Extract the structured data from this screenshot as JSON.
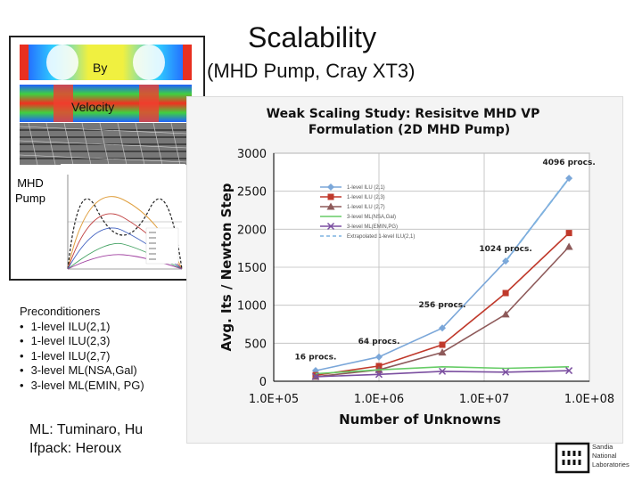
{
  "slide": {
    "title": "Scalability",
    "subtitle": "(MHD Pump, Cray XT3)"
  },
  "left_panel": {
    "by_label": "By",
    "velocity_label": "Velocity",
    "mhd_label": "MHD Pump"
  },
  "preconditioners": {
    "heading": "Preconditioners",
    "items": [
      "1-level ILU(2,1)",
      "1-level ILU(2,3)",
      "1-level ILU(2,7)",
      "3-level ML(NSA,Gal)",
      "3-level ML(EMIN, PG)"
    ]
  },
  "credits": {
    "line1": "ML: Tuminaro, Hu",
    "line2": "Ifpack: Heroux"
  },
  "logo": {
    "line1": "Sandia",
    "line2": "National",
    "line3": "Laboratories"
  },
  "chart_data": {
    "type": "line",
    "title_line1": "Weak Scaling Study: Resisitve MHD VP",
    "title_line2": "Formulation (2D MHD Pump)",
    "xlabel": "Number of Unknowns",
    "ylabel": "Avg. Its / Newton Step",
    "x_scale": "log",
    "xlim": [
      100000,
      100000000
    ],
    "ylim": [
      0,
      3000
    ],
    "x_ticks": [
      "1.0E+05",
      "1.0E+06",
      "1.0E+07",
      "1.0E+08"
    ],
    "y_ticks": [
      0,
      500,
      1000,
      1500,
      2000,
      2500,
      3000
    ],
    "grid": true,
    "legend_position": "upper-left",
    "x": [
      250000,
      1000000,
      4000000,
      16000000,
      64000000
    ],
    "series": [
      {
        "name": "1-level ILU (2,1)",
        "color": "#7ba7d9",
        "marker": "diamond",
        "dash": "solid",
        "values": [
          140,
          320,
          700,
          1580,
          2670
        ]
      },
      {
        "name": "1-level ILU (2,3)",
        "color": "#c0392b",
        "marker": "square",
        "dash": "solid",
        "values": [
          80,
          200,
          480,
          1160,
          1950
        ]
      },
      {
        "name": "1-level ILU (2,7)",
        "color": "#8e5a5a",
        "marker": "triangle",
        "dash": "solid",
        "values": [
          60,
          150,
          380,
          880,
          1770
        ]
      },
      {
        "name": "3-level ML(NSA,Gal)",
        "color": "#66cc66",
        "marker": "none",
        "dash": "solid",
        "values": [
          100,
          150,
          190,
          170,
          190
        ]
      },
      {
        "name": "3-level ML(EMIN,PG)",
        "color": "#7b4fa0",
        "marker": "x",
        "dash": "solid",
        "values": [
          60,
          90,
          130,
          120,
          140
        ]
      },
      {
        "name": "Extrapolated 1-level ILU(2,1)",
        "color": "#7fb3e0",
        "marker": "none",
        "dash": "dashed",
        "values": [
          null,
          null,
          null,
          1580,
          2670
        ]
      }
    ],
    "annotations": [
      {
        "text": "16 procs.",
        "x": 250000,
        "y": 290
      },
      {
        "text": "64 procs.",
        "x": 1000000,
        "y": 490
      },
      {
        "text": "256 procs.",
        "x": 4000000,
        "y": 970
      },
      {
        "text": "1024 procs.",
        "x": 16000000,
        "y": 1710
      },
      {
        "text": "4096 procs.",
        "x": 64000000,
        "y": 2850
      }
    ]
  }
}
